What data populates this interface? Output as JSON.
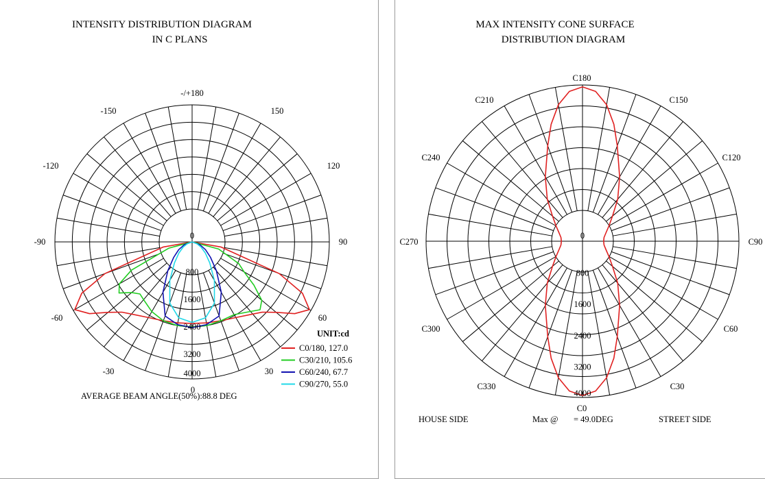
{
  "left": {
    "title_line1": "INTENSITY DISTRIBUTION DIAGRAM",
    "title_line2": "IN C PLANS",
    "angle_labels": [
      "-/+180",
      "-150",
      "150",
      "-120",
      "120",
      "-90",
      "90",
      "-60",
      "60",
      "-30",
      "30",
      "0"
    ],
    "radial_labels": [
      "0",
      "800",
      "1600",
      "2400",
      "3200",
      "4000"
    ],
    "unit": "UNIT:cd",
    "footer": "AVERAGE BEAM ANGLE(50%):88.8 DEG",
    "colors": {
      "c0": "#e02020",
      "c30": "#22cc22",
      "c60": "#1010b0",
      "c90": "#20d8e8",
      "grid": "#000000"
    }
  },
  "right": {
    "title_line1": "MAX INTENSITY CONE SURFACE",
    "title_line2": "DISTRIBUTION DIAGRAM",
    "angle_labels": [
      "C180",
      "C150",
      "C210",
      "C120",
      "C240",
      "C90",
      "C270",
      "C60",
      "C300",
      "C30",
      "C330",
      "C0"
    ],
    "radial_labels": [
      "0",
      "800",
      "1600",
      "2400",
      "3200",
      "4000"
    ],
    "house_side": "HOUSE SIDE",
    "max_label": "Max @",
    "max_value": "= 49.0DEG",
    "street_side": "STREET SIDE"
  },
  "chart_data": [
    {
      "type": "polar-line",
      "title": "INTENSITY DISTRIBUTION DIAGRAM IN C PLANS",
      "unit": "cd",
      "radial_range": [
        0,
        4000
      ],
      "radial_ticks": [
        0,
        800,
        1600,
        2400,
        3200,
        4000
      ],
      "angle_ticks_deg": [
        -180,
        -150,
        -120,
        -90,
        -60,
        -30,
        0,
        30,
        60,
        90,
        120,
        150,
        180
      ],
      "legend_position": "bottom-right",
      "series": [
        {
          "name": "C0/180, 127.0",
          "color": "#e02020",
          "angles": [
            -90,
            -80,
            -70,
            -65,
            -60,
            -55,
            -50,
            -45,
            -40,
            -30,
            -20,
            -10,
            0,
            10,
            20,
            30,
            40,
            45,
            50,
            55,
            60,
            65,
            70,
            80,
            90
          ],
          "values": [
            0,
            850,
            2700,
            3550,
            3950,
            3650,
            3200,
            2900,
            2750,
            2550,
            2450,
            2400,
            2380,
            2400,
            2450,
            2550,
            2750,
            2900,
            3200,
            3650,
            3950,
            3550,
            2700,
            850,
            0
          ]
        },
        {
          "name": "C30/210, 105.6",
          "color": "#22cc22",
          "angles": [
            -90,
            -75,
            -65,
            -60,
            -55,
            -50,
            -45,
            -40,
            -30,
            -20,
            -10,
            0,
            10,
            20,
            30,
            40,
            45,
            50,
            55,
            60,
            65,
            75,
            90
          ],
          "values": [
            0,
            700,
            1950,
            2450,
            2600,
            2300,
            2150,
            2200,
            2350,
            2450,
            2480,
            2480,
            2480,
            2450,
            2450,
            2650,
            2800,
            2650,
            2200,
            1750,
            1500,
            800,
            0
          ]
        },
        {
          "name": "C60/240, 67.7",
          "color": "#1010b0",
          "angles": [
            -90,
            -70,
            -60,
            -50,
            -40,
            -30,
            -20,
            -10,
            0,
            10,
            20,
            30,
            40,
            50,
            60,
            70,
            90
          ],
          "values": [
            0,
            250,
            450,
            700,
            1100,
            1700,
            2300,
            2450,
            2500,
            2450,
            2300,
            1700,
            1100,
            700,
            450,
            250,
            0
          ]
        },
        {
          "name": "C90/270, 55.0",
          "color": "#20d8e8",
          "angles": [
            -90,
            -70,
            -60,
            -50,
            -40,
            -30,
            -20,
            -10,
            0,
            10,
            20,
            30,
            40,
            50,
            60,
            70,
            90
          ],
          "values": [
            0,
            150,
            300,
            500,
            800,
            1300,
            1900,
            2250,
            2350,
            2250,
            1900,
            1300,
            800,
            500,
            300,
            150,
            0
          ]
        }
      ],
      "footer": "AVERAGE BEAM ANGLE(50%):88.8 DEG"
    },
    {
      "type": "polar-line",
      "title": "MAX INTENSITY CONE SURFACE DISTRIBUTION DIAGRAM",
      "radial_range": [
        0,
        4000
      ],
      "radial_ticks": [
        0,
        800,
        1600,
        2400,
        3200,
        4000
      ],
      "angle_ticks": [
        "C0",
        "C30",
        "C60",
        "C90",
        "C120",
        "C150",
        "C180",
        "C210",
        "C240",
        "C270",
        "C300",
        "C330"
      ],
      "max_cone_angle_deg": 49.0,
      "series": [
        {
          "color": "#e02020",
          "c_angles": [
            0,
            5,
            10,
            15,
            20,
            30,
            40,
            50,
            60,
            70,
            80,
            90,
            100,
            110,
            120,
            130,
            140,
            150,
            160,
            165,
            170,
            175,
            180
          ],
          "values": [
            3950,
            3850,
            3550,
            3100,
            2600,
            1900,
            1400,
            1000,
            780,
            640,
            560,
            540,
            560,
            640,
            780,
            1000,
            1400,
            1900,
            2600,
            3100,
            3550,
            3850,
            3950
          ]
        }
      ]
    }
  ]
}
